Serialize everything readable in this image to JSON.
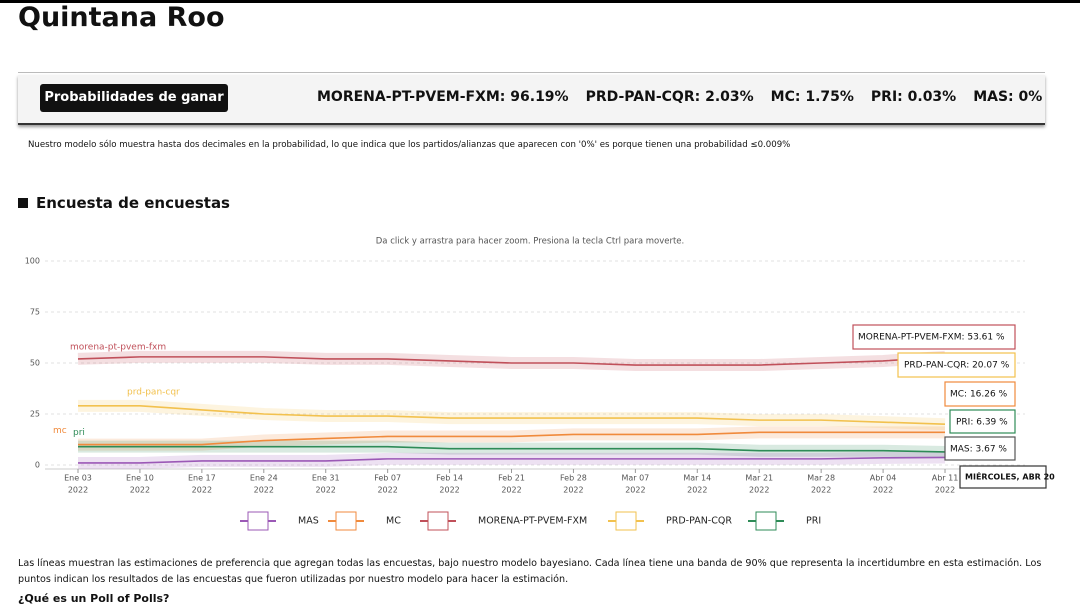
{
  "header": {
    "title": "Quintana Roo"
  },
  "probabilities": {
    "button": "Probabilidades de ganar",
    "items": [
      "MORENA-PT-PVEM-FXM: 96.19%",
      "PRD-PAN-CQR: 2.03%",
      "MC: 1.75%",
      "PRI: 0.03%",
      "MAS: 0%"
    ]
  },
  "note": "Nuestro modelo sólo muestra hasta dos decimales en la probabilidad, lo que indica que los partidos/alianzas que aparecen con '0%' es porque tienen una probabilidad ≤0.009%",
  "section": {
    "title": "Encuesta de encuestas"
  },
  "chart_data": {
    "type": "line",
    "hint": "Da click y arrastra para hacer zoom. Presiona la tecla Ctrl para moverte.",
    "categories": [
      "Ene 03",
      "Ene 10",
      "Ene 17",
      "Ene 24",
      "Ene 31",
      "Feb 07",
      "Feb 14",
      "Feb 21",
      "Feb 28",
      "Mar 07",
      "Mar 14",
      "Mar 21",
      "Mar 28",
      "Abr 04",
      "Abr 11"
    ],
    "category_year": "2022",
    "ylim": [
      0,
      100
    ],
    "yticks": [
      0,
      25,
      50,
      75,
      100
    ],
    "grid": true,
    "series": [
      {
        "name": "MORENA-PT-PVEM-FXM",
        "label": "morena-pt-pvem-fxm",
        "color": "#c0505a",
        "values": [
          52,
          53,
          53,
          53,
          52,
          52,
          51,
          50,
          50,
          49,
          49,
          49,
          50,
          51,
          53
        ]
      },
      {
        "name": "PRD-PAN-CQR",
        "label": "prd-pan-cqr",
        "color": "#f2c14e",
        "values": [
          29,
          29,
          27,
          25,
          24,
          24,
          23,
          23,
          23,
          23,
          23,
          22,
          22,
          21,
          20
        ]
      },
      {
        "name": "MC",
        "label": "mc",
        "color": "#f08a3c",
        "values": [
          10,
          10,
          10,
          12,
          13,
          14,
          14,
          14,
          15,
          15,
          15,
          16,
          16,
          16,
          16
        ]
      },
      {
        "name": "PRI",
        "label": "pri",
        "color": "#2e8b57",
        "values": [
          9,
          9,
          9,
          9,
          9,
          9,
          8,
          8,
          8,
          8,
          8,
          7,
          7,
          7,
          6.4
        ]
      },
      {
        "name": "MAS",
        "label": null,
        "color": "#9b59b6",
        "values": [
          1,
          1,
          2,
          2,
          2,
          3,
          3,
          3,
          3,
          3,
          3,
          3,
          3,
          3.5,
          3.7
        ]
      }
    ],
    "legend_order": [
      4,
      2,
      0,
      1,
      3
    ],
    "tooltip": {
      "date": "MIÉRCOLES, ABR 20",
      "entries": [
        "MORENA-PT-PVEM-FXM: 53.61 %",
        "PRD-PAN-CQR: 20.07 %",
        "MC: 16.26 %",
        "PRI: 6.39 %",
        "MAS: 3.67 %"
      ]
    }
  },
  "footer": {
    "paragraph": "Las líneas muestran las estimaciones de preferencia que agregan todas las encuestas, bajo nuestro modelo bayesiano. Cada línea tiene una banda de 90% que representa la incertidumbre en esta estimación. Los puntos indican los resultados de las encuestas que fueron utilizadas por nuestro modelo para hacer la estimación.",
    "question": "¿Qué es un Poll of Polls?"
  }
}
